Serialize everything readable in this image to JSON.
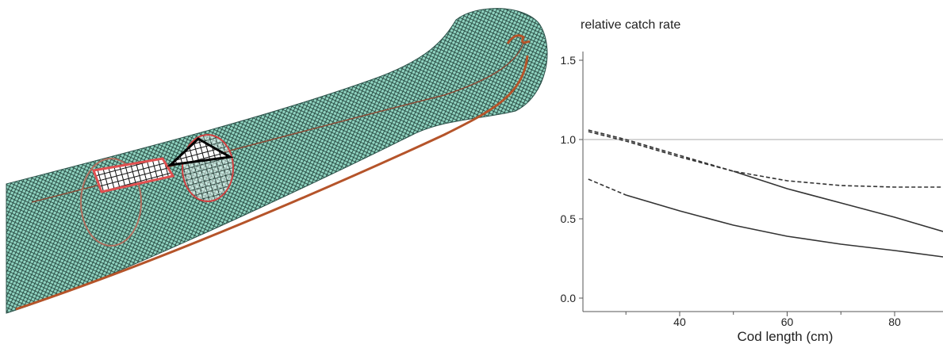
{
  "chart_data": {
    "type": "line",
    "title": "relative catch rate",
    "x_label": "Cod length (cm)",
    "x": [
      23,
      30,
      40,
      50,
      60,
      70,
      80,
      89
    ],
    "series": [
      {
        "color": "#333333",
        "dashed": true,
        "values": [
          1.06,
          1.0,
          0.9,
          0.8,
          0.74,
          0.71,
          0.7,
          0.7
        ]
      },
      {
        "color": "#333333",
        "dashed": true,
        "values": [
          1.05,
          0.99,
          0.89,
          0.8,
          null,
          null,
          null,
          null
        ]
      },
      {
        "color": "#333333",
        "dashed": false,
        "values": [
          null,
          null,
          null,
          0.8,
          0.69,
          0.6,
          0.51,
          0.42
        ]
      },
      {
        "color": "#333333",
        "dashed": true,
        "values": [
          0.75,
          0.65,
          null,
          null,
          null,
          null,
          null,
          null
        ]
      },
      {
        "color": "#333333",
        "dashed": false,
        "values": [
          null,
          0.65,
          0.55,
          0.46,
          0.39,
          0.34,
          0.3,
          0.26
        ]
      }
    ],
    "reference_line": 1.0,
    "xlim": [
      22,
      89
    ],
    "ylim": [
      -0.085,
      1.555
    ],
    "xticks": [
      40,
      60,
      80
    ],
    "xminorticks": [
      30,
      50,
      70
    ],
    "yticks": [
      {
        "value": 0,
        "label": "0.0"
      },
      0.5,
      {
        "value": 1,
        "label": "1.0"
      },
      1.5
    ]
  }
}
